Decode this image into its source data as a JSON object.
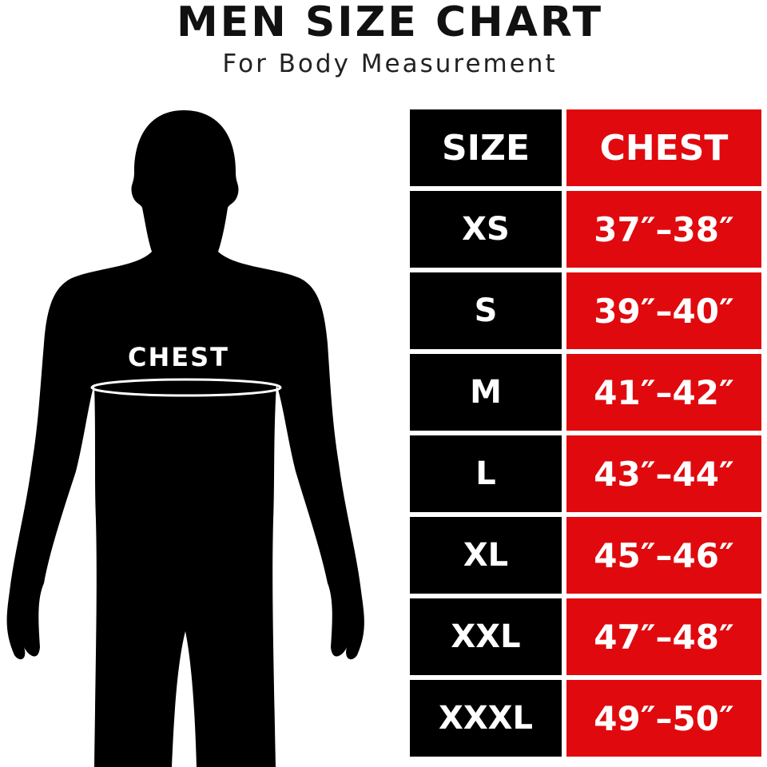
{
  "title": "MEN SIZE CHART",
  "subtitle": "For Body Measurement",
  "figure": {
    "chest_label": "CHEST"
  },
  "table": {
    "headers": [
      "SIZE",
      "CHEST"
    ],
    "rows": [
      {
        "size": "XS",
        "chest": "37″–38″"
      },
      {
        "size": "S",
        "chest": "39″–40″"
      },
      {
        "size": "M",
        "chest": "41″–42″"
      },
      {
        "size": "L",
        "chest": "43″–44″"
      },
      {
        "size": "XL",
        "chest": "45″–46″"
      },
      {
        "size": "XXL",
        "chest": "47″–48″"
      },
      {
        "size": "XXXL",
        "chest": "49″–50″"
      }
    ]
  },
  "colors": {
    "size_column": "#000000",
    "chest_column": "#e00a0e"
  }
}
